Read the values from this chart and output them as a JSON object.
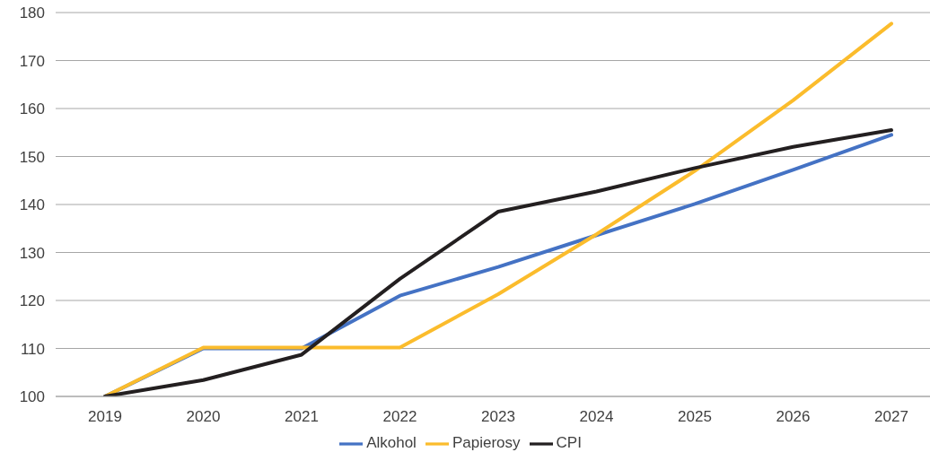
{
  "chart_data": {
    "type": "line",
    "categories": [
      "2019",
      "2020",
      "2021",
      "2022",
      "2023",
      "2024",
      "2025",
      "2026",
      "2027"
    ],
    "series": [
      {
        "name": "Alkohol",
        "color": "#4472c4",
        "values": [
          100,
          110,
          110,
          121,
          127,
          133.6,
          140.1,
          147.2,
          154.5
        ]
      },
      {
        "name": "Papierosy",
        "color": "#fbbc2c",
        "values": [
          100,
          110.2,
          110.2,
          110.2,
          121.3,
          133.8,
          147,
          161.7,
          177.7
        ]
      },
      {
        "name": "CPI",
        "color": "#231f20",
        "values": [
          100,
          103.4,
          108.7,
          124.5,
          138.5,
          142.7,
          147.6,
          152,
          155.5
        ]
      }
    ],
    "ylim": [
      100,
      180
    ],
    "yticks": [
      100,
      110,
      120,
      130,
      140,
      150,
      160,
      170,
      180
    ],
    "grid": "y",
    "legend": "bottom",
    "marker": "none",
    "line_style": "solid"
  }
}
